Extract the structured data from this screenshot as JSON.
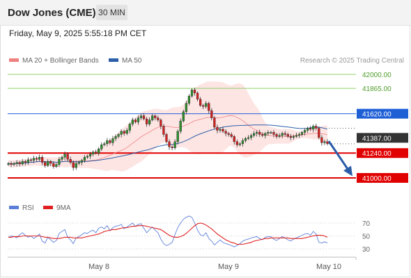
{
  "header": {
    "title": "Dow Jones (CME)",
    "timeframe": "30 MIN"
  },
  "datetime": "Friday, May 9, 2025 5:55:18 PM CET",
  "legend": {
    "bb_label": "MA 20 + Bollinger Bands",
    "ma50_label": "MA 50",
    "credit": "Research © 2025 Trading Central"
  },
  "rsi_legend": {
    "rsi_label": "RSI",
    "ma_label": "9MA"
  },
  "colors": {
    "resistance_green": "#8fcf6a",
    "pivot_blue": "#1f5fd6",
    "support_red": "#e10000",
    "price_dark": "#333333",
    "bb_fill": "#fde0df",
    "ma20": "#f08080",
    "ma50": "#2b5fa8",
    "candle_up": "#2f8f2f",
    "candle_down": "#d42020",
    "rsi": "#5b7fd8",
    "rsi_ma": "#e02020",
    "arrow": "#2a5ca8"
  },
  "chart_data": {
    "type": "candlestick",
    "title": "Dow Jones (CME)",
    "timeframe": "30 MIN",
    "x_tick_labels": [
      "May 8",
      "May 9",
      "May 10"
    ],
    "ylim": [
      40900,
      42100
    ],
    "levels": [
      {
        "value": 42000,
        "label": "42000.00",
        "kind": "resistance"
      },
      {
        "value": 41865,
        "label": "41865.00",
        "kind": "resistance"
      },
      {
        "value": 41620,
        "label": "41620.00",
        "kind": "pivot"
      },
      {
        "value": 41240,
        "label": "41240.00",
        "kind": "support"
      },
      {
        "value": 41000,
        "label": "41000.00",
        "kind": "support"
      }
    ],
    "last_price": {
      "value": 41387,
      "label": "41387.00"
    },
    "expected_path": [
      41355,
      41010
    ],
    "close_series": [
      41140,
      41130,
      41140,
      41150,
      41135,
      41160,
      41150,
      41175,
      41170,
      41190,
      41180,
      41200,
      41150,
      41120,
      41160,
      41140,
      41110,
      41130,
      41180,
      41200,
      41230,
      41180,
      41150,
      41100,
      41140,
      41150,
      41170,
      41200,
      41210,
      41230,
      41250,
      41240,
      41280,
      41320,
      41330,
      41360,
      41340,
      41380,
      41400,
      41420,
      41450,
      41430,
      41460,
      41520,
      41560,
      41540,
      41580,
      41600,
      41570,
      41520,
      41560,
      41600,
      41580,
      41560,
      41500,
      41420,
      41350,
      41300,
      41290,
      41350,
      41450,
      41550,
      41640,
      41720,
      41790,
      41850,
      41820,
      41760,
      41700,
      41690,
      41720,
      41650,
      41580,
      41490,
      41460,
      41470,
      41450,
      41430,
      41420,
      41400,
      41350,
      41320,
      41330,
      41360,
      41380,
      41390,
      41410,
      41430,
      41440,
      41420,
      41410,
      41430,
      41440,
      41440,
      41420,
      41400,
      41410,
      41430,
      41420,
      41400,
      41390,
      41400,
      41410,
      41420,
      41440,
      41460,
      41480,
      41470,
      41500,
      41480,
      41390,
      41340,
      41350,
      41330
    ],
    "rsi": {
      "ylim": [
        20,
        80
      ],
      "levels": [
        70,
        50,
        30
      ],
      "values": [
        48,
        50,
        49,
        47,
        52,
        55,
        51,
        48,
        50,
        46,
        49,
        53,
        42,
        39,
        48,
        44,
        40,
        43,
        54,
        57,
        60,
        48,
        44,
        38,
        47,
        49,
        52,
        55,
        54,
        57,
        59,
        55,
        62,
        64,
        61,
        66,
        58,
        63,
        65,
        66,
        68,
        61,
        64,
        67,
        70,
        65,
        68,
        69,
        62,
        55,
        60,
        64,
        59,
        55,
        45,
        38,
        35,
        37,
        40,
        52,
        63,
        70,
        76,
        79,
        81,
        79,
        70,
        59,
        52,
        50,
        55,
        46,
        42,
        36,
        40,
        44,
        40,
        38,
        37,
        35,
        33,
        35,
        38,
        42,
        44,
        45,
        47,
        48,
        49,
        46,
        44,
        48,
        49,
        49,
        45,
        43,
        46,
        49,
        47,
        44,
        42,
        45,
        47,
        49,
        51,
        53,
        54,
        51,
        57,
        53,
        40,
        39,
        41,
        39
      ],
      "ma9": [
        48,
        48,
        49,
        49,
        49,
        50,
        50,
        50,
        50,
        50,
        50,
        50,
        49,
        48,
        48,
        47,
        46,
        46,
        46,
        47,
        48,
        48,
        48,
        47,
        47,
        47,
        47,
        48,
        49,
        50,
        51,
        52,
        53,
        55,
        57,
        58,
        59,
        60,
        60,
        61,
        62,
        63,
        63,
        64,
        65,
        65,
        66,
        66,
        66,
        65,
        64,
        63,
        62,
        61,
        60,
        57,
        54,
        51,
        49,
        48,
        48,
        49,
        51,
        54,
        58,
        62,
        66,
        69,
        70,
        69,
        67,
        64,
        61,
        57,
        53,
        50,
        47,
        44,
        42,
        40,
        39,
        37,
        37,
        37,
        38,
        39,
        40,
        42,
        43,
        44,
        45,
        46,
        46,
        47,
        47,
        47,
        47,
        47,
        47,
        47,
        46,
        46,
        46,
        46,
        46,
        47,
        48,
        49,
        50,
        51,
        51,
        51,
        50,
        48
      ]
    }
  }
}
